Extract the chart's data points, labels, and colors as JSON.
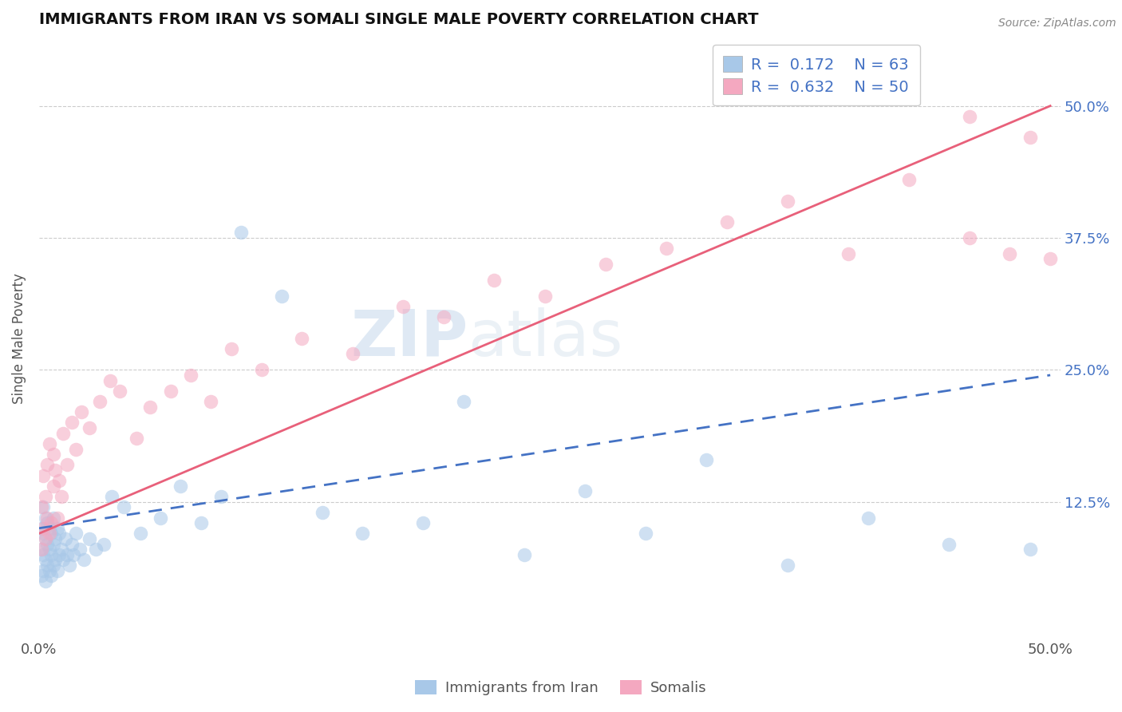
{
  "title": "IMMIGRANTS FROM IRAN VS SOMALI SINGLE MALE POVERTY CORRELATION CHART",
  "source": "Source: ZipAtlas.com",
  "ylabel": "Single Male Poverty",
  "xlim": [
    0.0,
    0.505
  ],
  "ylim": [
    -0.005,
    0.565
  ],
  "iran_color": "#a8c8e8",
  "somali_color": "#f4a8c0",
  "iran_line_color": "#4472c4",
  "somali_line_color": "#e8607a",
  "iran_R": 0.172,
  "iran_N": 63,
  "somali_R": 0.632,
  "somali_N": 50,
  "watermark_zip": "ZIP",
  "watermark_atlas": "atlas",
  "background_color": "#ffffff",
  "grid_color": "#cccccc",
  "iran_scatter_x": [
    0.001,
    0.001,
    0.001,
    0.002,
    0.002,
    0.002,
    0.002,
    0.003,
    0.003,
    0.003,
    0.003,
    0.004,
    0.004,
    0.004,
    0.005,
    0.005,
    0.005,
    0.006,
    0.006,
    0.006,
    0.007,
    0.007,
    0.007,
    0.008,
    0.008,
    0.009,
    0.009,
    0.01,
    0.01,
    0.011,
    0.012,
    0.013,
    0.014,
    0.015,
    0.016,
    0.017,
    0.018,
    0.02,
    0.022,
    0.025,
    0.028,
    0.032,
    0.036,
    0.042,
    0.05,
    0.06,
    0.07,
    0.08,
    0.09,
    0.1,
    0.12,
    0.14,
    0.16,
    0.19,
    0.21,
    0.24,
    0.27,
    0.3,
    0.33,
    0.37,
    0.41,
    0.45,
    0.49
  ],
  "iran_scatter_y": [
    0.055,
    0.08,
    0.1,
    0.06,
    0.075,
    0.095,
    0.12,
    0.05,
    0.07,
    0.09,
    0.11,
    0.065,
    0.085,
    0.105,
    0.06,
    0.08,
    0.1,
    0.055,
    0.075,
    0.095,
    0.065,
    0.085,
    0.11,
    0.07,
    0.09,
    0.06,
    0.1,
    0.075,
    0.095,
    0.08,
    0.07,
    0.09,
    0.075,
    0.065,
    0.085,
    0.075,
    0.095,
    0.08,
    0.07,
    0.09,
    0.08,
    0.085,
    0.13,
    0.12,
    0.095,
    0.11,
    0.14,
    0.105,
    0.13,
    0.38,
    0.32,
    0.115,
    0.095,
    0.105,
    0.22,
    0.075,
    0.135,
    0.095,
    0.165,
    0.065,
    0.11,
    0.085,
    0.08
  ],
  "somali_scatter_x": [
    0.001,
    0.001,
    0.002,
    0.002,
    0.003,
    0.003,
    0.004,
    0.004,
    0.005,
    0.005,
    0.006,
    0.007,
    0.007,
    0.008,
    0.009,
    0.01,
    0.011,
    0.012,
    0.014,
    0.016,
    0.018,
    0.021,
    0.025,
    0.03,
    0.035,
    0.04,
    0.048,
    0.055,
    0.065,
    0.075,
    0.085,
    0.095,
    0.11,
    0.13,
    0.155,
    0.18,
    0.2,
    0.225,
    0.25,
    0.28,
    0.31,
    0.34,
    0.37,
    0.4,
    0.43,
    0.46,
    0.49,
    0.5,
    0.48,
    0.46
  ],
  "somali_scatter_y": [
    0.08,
    0.12,
    0.1,
    0.15,
    0.09,
    0.13,
    0.11,
    0.16,
    0.095,
    0.18,
    0.105,
    0.14,
    0.17,
    0.155,
    0.11,
    0.145,
    0.13,
    0.19,
    0.16,
    0.2,
    0.175,
    0.21,
    0.195,
    0.22,
    0.24,
    0.23,
    0.185,
    0.215,
    0.23,
    0.245,
    0.22,
    0.27,
    0.25,
    0.28,
    0.265,
    0.31,
    0.3,
    0.335,
    0.32,
    0.35,
    0.365,
    0.39,
    0.41,
    0.36,
    0.43,
    0.375,
    0.47,
    0.355,
    0.36,
    0.49
  ]
}
